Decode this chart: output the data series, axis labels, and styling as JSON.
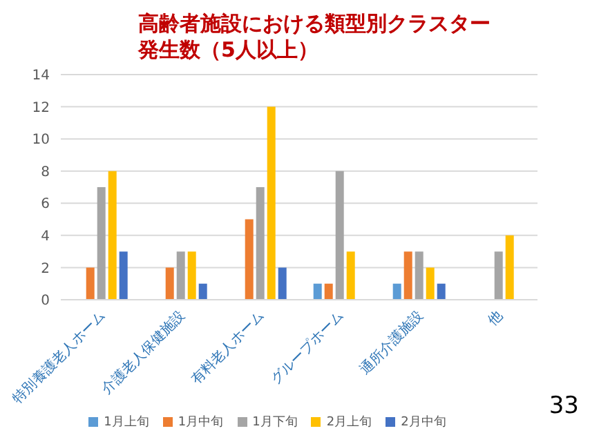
{
  "chart_data": {
    "type": "bar",
    "title": "高齢者施設における類型別クラスター発生数（5人以上）",
    "categories": [
      "特別養護老人ホーム",
      "介護老人保健施設",
      "有料老人ホーム",
      "グループホーム",
      "通所介護施設",
      "他"
    ],
    "series": [
      {
        "name": "1月上旬",
        "color": "#5b9bd5",
        "values": [
          0,
          0,
          0,
          1,
          1,
          0
        ]
      },
      {
        "name": "1月中旬",
        "color": "#ed7d31",
        "values": [
          2,
          2,
          5,
          1,
          3,
          0
        ]
      },
      {
        "name": "1月下旬",
        "color": "#a5a5a5",
        "values": [
          7,
          3,
          7,
          8,
          3,
          3
        ]
      },
      {
        "name": "2月上旬",
        "color": "#ffc000",
        "values": [
          8,
          3,
          12,
          3,
          2,
          4
        ]
      },
      {
        "name": "2月中旬",
        "color": "#4472c4",
        "values": [
          3,
          1,
          2,
          0,
          1,
          0
        ]
      }
    ],
    "ylim": [
      0,
      14
    ],
    "yticks": [
      0,
      2,
      4,
      6,
      8,
      10,
      12,
      14
    ],
    "grid": "y",
    "legend": "bottom",
    "annotations": [
      "33"
    ]
  }
}
